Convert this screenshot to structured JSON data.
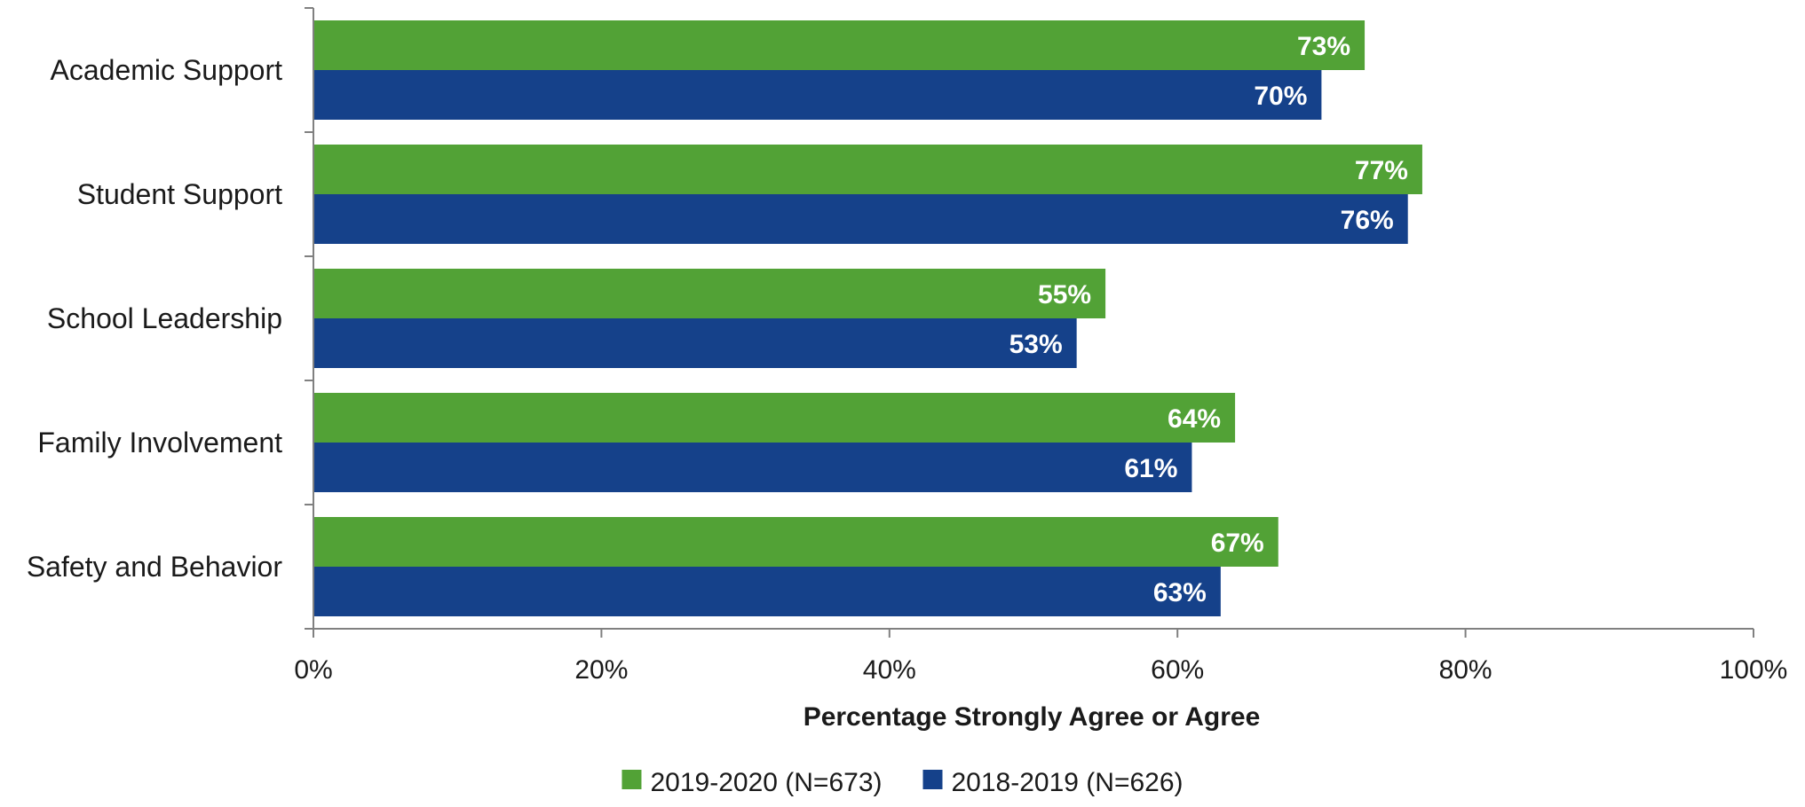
{
  "chart_data": {
    "type": "bar",
    "orientation": "horizontal",
    "categories": [
      "Academic Support",
      "Student Support",
      "School Leadership",
      "Family Involvement",
      "Safety and Behavior"
    ],
    "series": [
      {
        "name": "2019-2020 (N=673)",
        "color": "#52a236",
        "values": [
          73,
          77,
          55,
          64,
          67
        ],
        "labels": [
          "73%",
          "77%",
          "55%",
          "64%",
          "67%"
        ]
      },
      {
        "name": "2018-2019 (N=626)",
        "color": "#15418a",
        "values": [
          70,
          76,
          53,
          61,
          63
        ],
        "labels": [
          "70%",
          "76%",
          "53%",
          "61%",
          "63%"
        ]
      }
    ],
    "xlim": [
      0,
      100
    ],
    "xticks": [
      0,
      20,
      40,
      60,
      80,
      100
    ],
    "xtick_labels": [
      "0%",
      "20%",
      "40%",
      "60%",
      "80%",
      "100%"
    ],
    "xlabel": "Percentage Strongly Agree or Agree",
    "ylabel": "",
    "title": "",
    "grid": false,
    "legend_position": "bottom"
  }
}
